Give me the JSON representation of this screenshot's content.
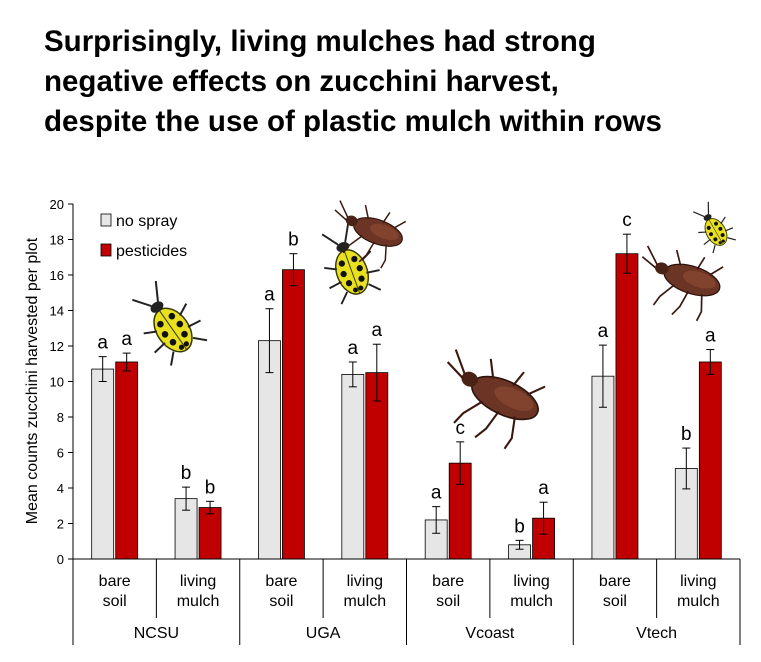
{
  "title_lines": [
    "Surprisingly, living mulches had strong",
    "negative effects on zucchini harvest,",
    "despite the use of plastic mulch within rows"
  ],
  "chart_data": {
    "type": "bar",
    "title": "Surprisingly, living mulches had strong negative effects on zucchini harvest, despite the use of plastic mulch within rows",
    "ylabel": "Mean counts zucchini harvested per plot",
    "xlabel": "",
    "ylim": [
      0,
      20
    ],
    "yticks": [
      0,
      2,
      4,
      6,
      8,
      10,
      12,
      14,
      16,
      18,
      20
    ],
    "legend_position": "top-left",
    "grid": false,
    "groups": [
      "NCSU",
      "UGA",
      "Vcoast",
      "Vtech"
    ],
    "subcategories": [
      "bare soil",
      "living mulch"
    ],
    "series": [
      {
        "name": "no spray",
        "color": "#e6e6e6",
        "values": [
          10.7,
          3.4,
          12.3,
          10.4,
          2.2,
          0.8,
          10.3,
          5.1
        ],
        "errors": [
          0.7,
          0.65,
          1.8,
          0.7,
          0.75,
          0.25,
          1.75,
          1.15
        ],
        "letters": [
          "a",
          "b",
          "a",
          "a",
          "a",
          "b",
          "a",
          "b"
        ]
      },
      {
        "name": "pesticides",
        "color": "#c00000",
        "values": [
          11.1,
          2.9,
          16.3,
          10.5,
          5.4,
          2.3,
          17.2,
          11.1
        ],
        "errors": [
          0.5,
          0.35,
          0.9,
          1.6,
          1.2,
          0.9,
          1.1,
          0.7
        ],
        "letters": [
          "a",
          "b",
          "b",
          "a",
          "c",
          "a",
          "c",
          "a"
        ]
      }
    ]
  }
}
